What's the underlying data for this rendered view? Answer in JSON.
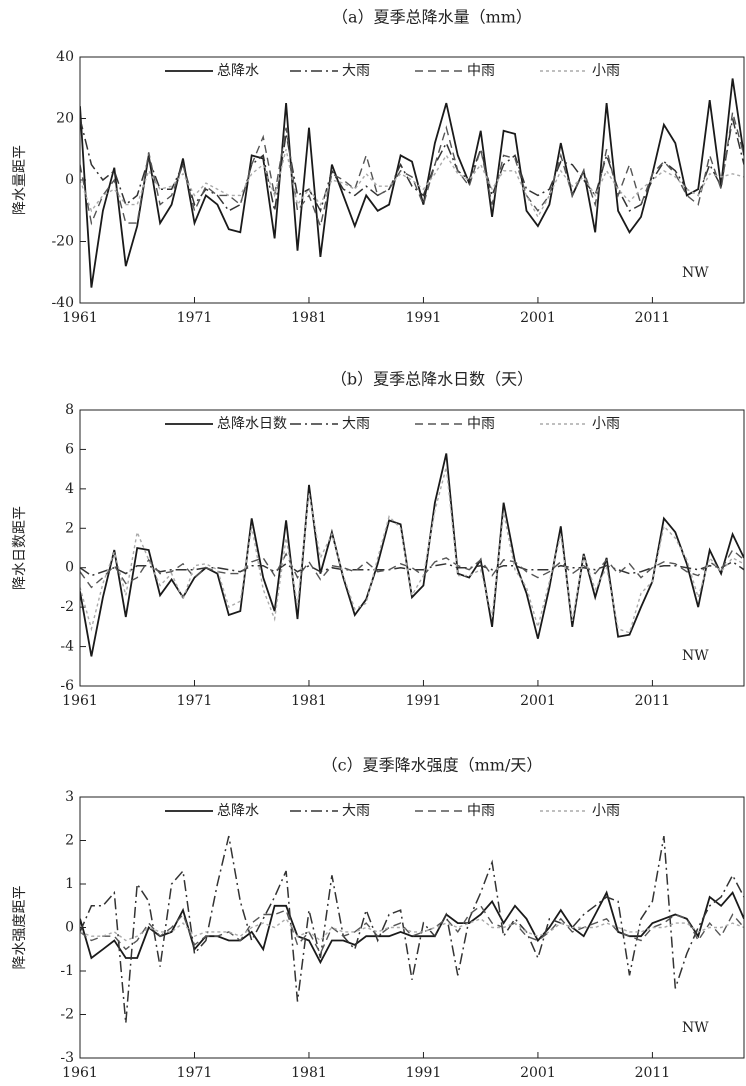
{
  "chart_data": [
    {
      "type": "line",
      "title": "（a）夏季总降水量（mm）",
      "y_label": "降水量距平",
      "annotation": "NW",
      "x": [
        1961,
        1962,
        1963,
        1964,
        1965,
        1966,
        1967,
        1968,
        1969,
        1970,
        1971,
        1972,
        1973,
        1974,
        1975,
        1976,
        1977,
        1978,
        1979,
        1980,
        1981,
        1982,
        1983,
        1984,
        1985,
        1986,
        1987,
        1988,
        1989,
        1990,
        1991,
        1992,
        1993,
        1994,
        1995,
        1996,
        1997,
        1998,
        1999,
        2000,
        2001,
        2002,
        2003,
        2004,
        2005,
        2006,
        2007,
        2008,
        2009,
        2010,
        2011,
        2012,
        2013,
        2014,
        2015,
        2016,
        2017,
        2018,
        2019
      ],
      "xlim": [
        1961,
        2019
      ],
      "xticks": [
        1961,
        1971,
        1981,
        1991,
        2001,
        2011
      ],
      "ylim": [
        -40,
        40
      ],
      "yticks": [
        -40,
        -20,
        0,
        20,
        40
      ],
      "legend": "top",
      "series": [
        {
          "name": "总降水",
          "color": "#1a1a1a",
          "dash": "solid",
          "values": [
            24,
            -35,
            -10,
            4,
            -28,
            -15,
            8,
            -14,
            -8,
            7,
            -14,
            -5,
            -8,
            -16,
            -17,
            8,
            7,
            -19,
            25,
            -23,
            17,
            -25,
            5,
            -5,
            -15,
            -5,
            -10,
            -8,
            8,
            6,
            -8,
            12,
            25,
            8,
            -1,
            16,
            -12,
            16,
            15,
            -10,
            -15,
            -8,
            12,
            -5,
            3,
            -17,
            25,
            -10,
            -17,
            -12,
            2,
            18,
            12,
            -5,
            -3,
            26,
            -2,
            33,
            8
          ]
        },
        {
          "name": "大雨",
          "color": "#333333",
          "dash": "dashdot",
          "values": [
            20,
            5,
            0,
            3,
            -8,
            -5,
            7,
            -3,
            -3,
            5,
            -8,
            -3,
            -5,
            -10,
            -8,
            5,
            8,
            -10,
            15,
            -5,
            -3,
            -10,
            3,
            -3,
            -5,
            -2,
            -5,
            -3,
            5,
            -2,
            -5,
            5,
            12,
            3,
            0,
            10,
            -5,
            5,
            8,
            -3,
            -5,
            -3,
            6,
            5,
            0,
            -5,
            8,
            -3,
            -10,
            -8,
            0,
            6,
            3,
            -3,
            -5,
            5,
            -2,
            20,
            5
          ]
        },
        {
          "name": "中雨",
          "color": "#555555",
          "dash": "dash",
          "values": [
            5,
            -14,
            -5,
            0,
            -14,
            -14,
            9,
            -8,
            -5,
            5,
            -10,
            -2,
            -5,
            -5,
            -8,
            5,
            14,
            -5,
            17,
            -10,
            -5,
            -15,
            2,
            0,
            -3,
            8,
            -5,
            -3,
            3,
            1,
            -8,
            5,
            17,
            3,
            -2,
            10,
            -8,
            8,
            7,
            -5,
            -10,
            -5,
            8,
            -5,
            3,
            -8,
            10,
            -5,
            5,
            -8,
            2,
            6,
            2,
            -5,
            -8,
            8,
            -3,
            22,
            8
          ]
        },
        {
          "name": "小雨",
          "color": "#aaaaaa",
          "dash": "dot",
          "values": [
            0,
            -10,
            -5,
            -3,
            -8,
            -8,
            3,
            -3,
            -2,
            2,
            -5,
            -1,
            -3,
            -5,
            -5,
            2,
            5,
            -5,
            10,
            -8,
            -3,
            -8,
            0,
            -1,
            -3,
            2,
            -2,
            -2,
            2,
            0,
            -3,
            2,
            8,
            2,
            0,
            5,
            -3,
            3,
            3,
            -5,
            -12,
            -5,
            3,
            -2,
            1,
            -5,
            3,
            -3,
            -7,
            -3,
            0,
            3,
            1,
            -3,
            -5,
            2,
            1,
            2,
            1
          ]
        }
      ]
    },
    {
      "type": "line",
      "title": "（b）夏季总降水日数（天）",
      "y_label": "降水日数距平",
      "annotation": "NW",
      "x": [
        1961,
        1962,
        1963,
        1964,
        1965,
        1966,
        1967,
        1968,
        1969,
        1970,
        1971,
        1972,
        1973,
        1974,
        1975,
        1976,
        1977,
        1978,
        1979,
        1980,
        1981,
        1982,
        1983,
        1984,
        1985,
        1986,
        1987,
        1988,
        1989,
        1990,
        1991,
        1992,
        1993,
        1994,
        1995,
        1996,
        1997,
        1998,
        1999,
        2000,
        2001,
        2002,
        2003,
        2004,
        2005,
        2006,
        2007,
        2008,
        2009,
        2010,
        2011,
        2012,
        2013,
        2014,
        2015,
        2016,
        2017,
        2018,
        2019
      ],
      "xlim": [
        1961,
        2019
      ],
      "xticks": [
        1961,
        1971,
        1981,
        1991,
        2001,
        2011
      ],
      "ylim": [
        -6,
        8
      ],
      "yticks": [
        -6,
        -4,
        -2,
        0,
        2,
        4,
        6,
        8
      ],
      "legend": "top",
      "series": [
        {
          "name": "总降水日数",
          "color": "#1a1a1a",
          "dash": "solid",
          "values": [
            -1.2,
            -4.5,
            -1.5,
            0.9,
            -2.5,
            1.0,
            0.9,
            -1.4,
            -0.6,
            -1.5,
            -0.5,
            0.0,
            -0.3,
            -2.4,
            -2.2,
            2.5,
            -0.5,
            -2.2,
            2.4,
            -2.6,
            4.2,
            -0.3,
            1.8,
            -0.5,
            -2.4,
            -1.6,
            0.2,
            2.4,
            2.2,
            -1.5,
            -0.9,
            3.3,
            5.8,
            -0.3,
            -0.5,
            0.4,
            -3.0,
            3.3,
            0.3,
            -1.3,
            -3.6,
            -1.0,
            2.1,
            -3.0,
            0.7,
            -1.5,
            0.5,
            -3.5,
            -3.4,
            -2.0,
            -0.7,
            2.5,
            1.8,
            0.2,
            -2.0,
            0.9,
            -0.3,
            1.7,
            0.5
          ]
        },
        {
          "name": "大雨",
          "color": "#333333",
          "dash": "dashdot",
          "values": [
            0,
            -0.4,
            -0.2,
            0,
            -0.3,
            0.1,
            0.1,
            -0.2,
            -0.1,
            -0.1,
            -0.1,
            0,
            0,
            -0.1,
            -0.2,
            0.1,
            0.1,
            -0.2,
            0.2,
            -0.2,
            0.1,
            -0.2,
            0,
            -0.1,
            -0.1,
            -0.1,
            -0.1,
            -0.1,
            0,
            -0.1,
            -0.1,
            0.1,
            0.2,
            0,
            0,
            0.1,
            -0.1,
            0.1,
            0.1,
            -0.1,
            -0.1,
            -0.1,
            0.1,
            0,
            0,
            -0.1,
            0.1,
            -0.1,
            -0.3,
            -0.2,
            0,
            0.1,
            0.1,
            0,
            -0.1,
            0.1,
            0,
            0.3,
            -0.1
          ]
        },
        {
          "name": "中雨",
          "color": "#555555",
          "dash": "dash",
          "values": [
            -0.2,
            -1.0,
            -0.5,
            0.1,
            -0.8,
            -0.5,
            0.4,
            -0.3,
            -0.2,
            0.2,
            -0.5,
            0,
            -0.2,
            -0.3,
            -0.3,
            0.3,
            0.5,
            -0.4,
            0.7,
            -0.5,
            0.3,
            -0.6,
            0.1,
            0,
            -0.2,
            0.3,
            -0.2,
            -0.1,
            0.2,
            0,
            -0.4,
            0.3,
            0.5,
            0.1,
            -0.1,
            0.4,
            -0.4,
            0.4,
            0.3,
            -0.2,
            -0.5,
            -0.2,
            0.3,
            -0.3,
            0.1,
            -0.3,
            0.4,
            -0.3,
            0.2,
            -0.5,
            0,
            0.3,
            0.2,
            -0.2,
            -0.4,
            0.3,
            -0.1,
            0.9,
            0.4
          ]
        },
        {
          "name": "小雨",
          "color": "#aaaaaa",
          "dash": "dot",
          "values": [
            -1.0,
            -3.1,
            -0.8,
            0.8,
            -1.4,
            1.8,
            0.4,
            -0.9,
            -0.3,
            -1.6,
            0.1,
            0.2,
            -0.1,
            -2.0,
            -1.7,
            2.1,
            -1.1,
            -2.6,
            1.5,
            -1.9,
            3.8,
            0.5,
            1.7,
            -0.4,
            -2.1,
            -1.8,
            0.5,
            2.6,
            2.0,
            -1.4,
            -0.4,
            2.9,
            5.1,
            -0.4,
            -0.4,
            -0.1,
            -2.5,
            2.8,
            -0.1,
            -1.0,
            -3.0,
            -0.7,
            1.7,
            -2.7,
            0.6,
            -1.1,
            0.0,
            -3.1,
            -3.3,
            -1.3,
            -0.7,
            2.1,
            1.5,
            0.4,
            -1.5,
            0.5,
            -0.2,
            0.5,
            0.2
          ]
        }
      ]
    },
    {
      "type": "line",
      "title": "（c）夏季降水强度（mm/天）",
      "y_label": "降水强度距平",
      "annotation": "NW",
      "x": [
        1961,
        1962,
        1963,
        1964,
        1965,
        1966,
        1967,
        1968,
        1969,
        1970,
        1971,
        1972,
        1973,
        1974,
        1975,
        1976,
        1977,
        1978,
        1979,
        1980,
        1981,
        1982,
        1983,
        1984,
        1985,
        1986,
        1987,
        1988,
        1989,
        1990,
        1991,
        1992,
        1993,
        1994,
        1995,
        1996,
        1997,
        1998,
        1999,
        2000,
        2001,
        2002,
        2003,
        2004,
        2005,
        2006,
        2007,
        2008,
        2009,
        2010,
        2011,
        2012,
        2013,
        2014,
        2015,
        2016,
        2017,
        2018,
        2019
      ],
      "xlim": [
        1961,
        2019
      ],
      "xticks": [
        1961,
        1971,
        1981,
        1991,
        2001,
        2011
      ],
      "ylim": [
        -3,
        3
      ],
      "yticks": [
        -3,
        -2,
        -1,
        0,
        1,
        2,
        3
      ],
      "legend": "top",
      "series": [
        {
          "name": "总降水",
          "color": "#1a1a1a",
          "dash": "solid",
          "values": [
            0.2,
            -0.7,
            -0.5,
            -0.3,
            -0.7,
            -0.7,
            0.0,
            -0.2,
            -0.1,
            0.4,
            -0.5,
            -0.2,
            -0.2,
            -0.3,
            -0.3,
            -0.1,
            -0.5,
            0.5,
            0.5,
            -0.2,
            -0.3,
            -0.8,
            -0.3,
            -0.3,
            -0.4,
            -0.2,
            -0.2,
            -0.2,
            -0.1,
            -0.2,
            -0.2,
            -0.2,
            0.3,
            0.1,
            0.1,
            0.3,
            0.6,
            0.1,
            0.5,
            0.2,
            -0.3,
            0.0,
            0.4,
            0.0,
            -0.2,
            0.3,
            0.8,
            -0.1,
            -0.2,
            -0.2,
            0.1,
            0.2,
            0.3,
            0.2,
            -0.2,
            0.7,
            0.5,
            0.8,
            0.2
          ]
        },
        {
          "name": "大雨",
          "color": "#333333",
          "dash": "dashdot",
          "values": [
            -0.1,
            0.5,
            0.5,
            0.8,
            -2.2,
            1.0,
            0.6,
            -0.9,
            1.0,
            1.3,
            -0.6,
            -0.3,
            1.0,
            2.1,
            0.6,
            -0.3,
            0.2,
            0.7,
            1.3,
            -1.7,
            0.4,
            -0.7,
            1.2,
            -0.2,
            -0.5,
            0.4,
            -0.3,
            0.3,
            0.4,
            -1.2,
            0.1,
            -0.2,
            0.3,
            -1.1,
            0.2,
            0.8,
            1.5,
            -0.2,
            0.2,
            -0.1,
            -0.7,
            0.2,
            0.1,
            0.0,
            0.3,
            0.5,
            0.7,
            0.6,
            -1.1,
            0.2,
            0.6,
            2.1,
            -1.4,
            -0.6,
            0.0,
            0.5,
            0.7,
            1.2,
            0.7
          ]
        },
        {
          "name": "中雨",
          "color": "#555555",
          "dash": "dash",
          "values": [
            -0.1,
            -0.3,
            -0.2,
            -0.2,
            -0.5,
            -0.3,
            0.1,
            -0.2,
            0.0,
            0.3,
            -0.4,
            -0.2,
            -0.2,
            -0.1,
            -0.3,
            0.1,
            0.3,
            0.3,
            0.4,
            -0.4,
            -0.1,
            -0.6,
            0.0,
            -0.2,
            -0.1,
            0.1,
            -0.2,
            0.0,
            0.1,
            -0.2,
            -0.1,
            0.0,
            0.2,
            -0.1,
            0.3,
            0.5,
            0.1,
            0.0,
            0.1,
            -0.2,
            -0.3,
            -0.1,
            0.2,
            -0.1,
            0.0,
            0.1,
            0.2,
            -0.1,
            -0.2,
            -0.3,
            0.0,
            0.1,
            0.3,
            0.2,
            -0.3,
            0.1,
            -0.2,
            0.3,
            0.0
          ]
        },
        {
          "name": "小雨",
          "color": "#aaaaaa",
          "dash": "dot",
          "values": [
            -0.1,
            -0.2,
            -0.2,
            -0.1,
            -0.3,
            -0.2,
            0.0,
            -0.1,
            -0.1,
            0.1,
            -0.2,
            -0.1,
            -0.1,
            -0.1,
            -0.2,
            0.0,
            0.1,
            0.0,
            0.2,
            -0.2,
            -0.1,
            -0.3,
            0.0,
            -0.1,
            -0.1,
            0.0,
            -0.1,
            0.0,
            0.0,
            -0.1,
            -0.1,
            0.0,
            0.1,
            0.0,
            0.1,
            0.2,
            0.0,
            0.0,
            0.1,
            -0.1,
            -0.2,
            -0.1,
            0.1,
            0.0,
            0.0,
            0.0,
            0.1,
            0.0,
            -0.1,
            -0.1,
            0.0,
            0.0,
            0.1,
            0.1,
            -0.1,
            0.0,
            0.0,
            0.1,
            0.0
          ]
        }
      ]
    }
  ]
}
